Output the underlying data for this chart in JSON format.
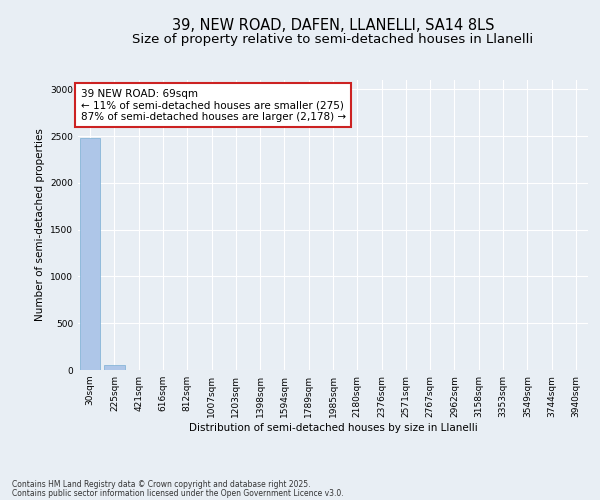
{
  "title1": "39, NEW ROAD, DAFEN, LLANELLI, SA14 8LS",
  "title2": "Size of property relative to semi-detached houses in Llanelli",
  "xlabel": "Distribution of semi-detached houses by size in Llanelli",
  "ylabel": "Number of semi-detached properties",
  "categories": [
    "30sqm",
    "225sqm",
    "421sqm",
    "616sqm",
    "812sqm",
    "1007sqm",
    "1203sqm",
    "1398sqm",
    "1594sqm",
    "1789sqm",
    "1985sqm",
    "2180sqm",
    "2376sqm",
    "2571sqm",
    "2767sqm",
    "2962sqm",
    "3158sqm",
    "3353sqm",
    "3549sqm",
    "3744sqm",
    "3940sqm"
  ],
  "values": [
    2480,
    50,
    2,
    1,
    0,
    0,
    0,
    0,
    0,
    0,
    0,
    0,
    0,
    0,
    0,
    0,
    0,
    0,
    0,
    0,
    0
  ],
  "bar_color": "#aec6e8",
  "bar_edge_color": "#7aafd4",
  "highlight_color": "#d94040",
  "highlight_bar_index": 0,
  "annotation_text": "39 NEW ROAD: 69sqm\n← 11% of semi-detached houses are smaller (275)\n87% of semi-detached houses are larger (2,178) →",
  "ylim": [
    0,
    3100
  ],
  "yticks": [
    0,
    500,
    1000,
    1500,
    2000,
    2500,
    3000
  ],
  "footer1": "Contains HM Land Registry data © Crown copyright and database right 2025.",
  "footer2": "Contains public sector information licensed under the Open Government Licence v3.0.",
  "bg_color": "#e8eef4",
  "plot_bg_color": "#e8eef4",
  "title1_fontsize": 10.5,
  "title2_fontsize": 9.5,
  "grid_color": "#ffffff",
  "annotation_box_color": "#cc2222",
  "ann_fontsize": 7.5,
  "ylabel_fontsize": 7.5,
  "xlabel_fontsize": 7.5,
  "tick_fontsize": 6.5,
  "footer_fontsize": 5.5
}
